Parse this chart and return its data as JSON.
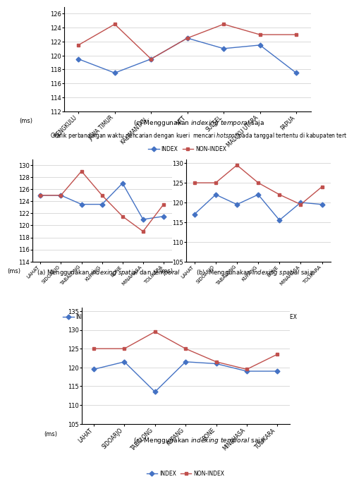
{
  "chart_top": {
    "categories": [
      "BENGKULU",
      "JAWA TIMUR",
      "KALIMANTAN..",
      "NTT",
      "SULSEL",
      "MALUKU UTARA",
      "PAPUA"
    ],
    "index": [
      119.5,
      117.5,
      119.5,
      122.5,
      121.0,
      121.5,
      117.5
    ],
    "non_index": [
      121.5,
      124.5,
      119.5,
      122.5,
      124.5,
      123.0,
      123.0
    ],
    "ylim": [
      112,
      127
    ],
    "yticks": [
      112,
      114,
      116,
      118,
      120,
      122,
      124,
      126
    ]
  },
  "chart_a": {
    "categories": [
      "LAHAT",
      "SIDOARJO",
      "TABALONG",
      "KUPANG",
      "BONE",
      "MINAHASA",
      "TOLIKARA"
    ],
    "index": [
      125.0,
      125.0,
      123.5,
      123.5,
      127.0,
      121.0,
      121.5
    ],
    "non_index": [
      125.0,
      125.0,
      129.0,
      125.0,
      121.5,
      119.0,
      123.5
    ],
    "ylim": [
      114,
      131
    ],
    "yticks": [
      114,
      116,
      118,
      120,
      122,
      124,
      126,
      128,
      130
    ]
  },
  "chart_b": {
    "categories": [
      "LAHAT",
      "SIDOARJO",
      "TABALONG",
      "KUPANG",
      "BONE",
      "MINAHASA",
      "TOLIKARA"
    ],
    "index": [
      117.0,
      122.0,
      119.5,
      122.0,
      115.5,
      120.0,
      119.5
    ],
    "non_index": [
      125.0,
      125.0,
      129.5,
      125.0,
      122.0,
      119.5,
      124.0
    ],
    "ylim": [
      105,
      131
    ],
    "yticks": [
      105,
      110,
      115,
      120,
      125,
      130
    ]
  },
  "chart_c": {
    "categories": [
      "LAHAT",
      "SIDOARJO",
      "TABALONG",
      "KUPANG",
      "BONE",
      "MINAHASA",
      "TOLIKARA"
    ],
    "index": [
      119.5,
      121.5,
      113.5,
      121.5,
      121.0,
      119.0,
      119.0
    ],
    "non_index": [
      125.0,
      125.0,
      129.5,
      125.0,
      121.5,
      119.5,
      123.5
    ],
    "ylim": [
      105,
      136
    ],
    "yticks": [
      105,
      110,
      115,
      120,
      125,
      130,
      135
    ]
  },
  "index_color": "#4472c4",
  "non_index_color": "#c0504d",
  "ylabel": "(ms)",
  "legend_index": "INDEX",
  "legend_non_index": "NON-INDEX",
  "caption_top": [
    "(c) Menggunakan ",
    "indexing temporal",
    " saja"
  ],
  "caption_main": [
    "Grafik perbandingan waktu pencarian dengan kueri  mencari ",
    "hotspot",
    " pada tanggal tertentu di kabupaten tert"
  ],
  "caption_a": [
    "(a) Menggunakan ",
    "indexing spatial",
    " dan ",
    "temporal"
  ],
  "caption_b": [
    "(b)  Menggunakan ",
    "indexing spatial",
    " saja"
  ],
  "caption_c": [
    "(c) Menggunakan ",
    "indexing temporal",
    " saja"
  ]
}
